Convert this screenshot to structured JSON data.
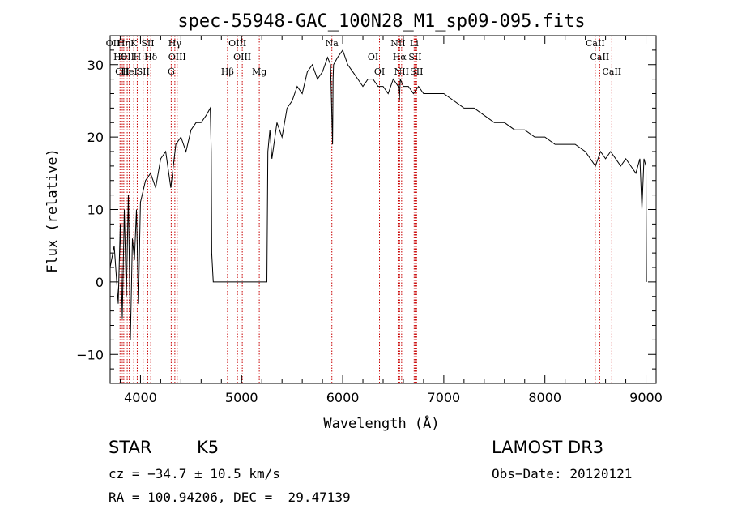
{
  "chart_data": {
    "type": "line",
    "title": "spec-55948-GAC_100N28_M1_sp09-095.fits",
    "xlabel": "Wavelength (Å)",
    "ylabel": "Flux (relative)",
    "xlim": [
      3700,
      9100
    ],
    "ylim": [
      -14,
      34
    ],
    "x_ticks": [
      4000,
      5000,
      6000,
      7000,
      8000,
      9000
    ],
    "y_ticks": [
      -10,
      0,
      10,
      20,
      30
    ],
    "grid": false,
    "series": [
      {
        "name": "spectrum",
        "x": [
          3700,
          3740,
          3780,
          3800,
          3820,
          3840,
          3860,
          3880,
          3900,
          3920,
          3940,
          3960,
          3980,
          4000,
          4050,
          4100,
          4150,
          4200,
          4250,
          4300,
          4350,
          4400,
          4450,
          4500,
          4550,
          4600,
          4650,
          4690,
          4700,
          4705,
          4720,
          4800,
          5000,
          5200,
          5250,
          5260,
          5280,
          5300,
          5350,
          5400,
          5450,
          5500,
          5550,
          5600,
          5650,
          5700,
          5750,
          5800,
          5850,
          5880,
          5900,
          5905,
          5910,
          5950,
          6000,
          6050,
          6100,
          6150,
          6200,
          6250,
          6300,
          6350,
          6400,
          6450,
          6500,
          6550,
          6560,
          6570,
          6600,
          6650,
          6700,
          6750,
          6800,
          6900,
          7000,
          7100,
          7200,
          7300,
          7400,
          7500,
          7600,
          7700,
          7800,
          7900,
          8000,
          8100,
          8200,
          8300,
          8400,
          8450,
          8500,
          8550,
          8600,
          8650,
          8700,
          8750,
          8800,
          8850,
          8900,
          8940,
          8960,
          8980,
          9000,
          9005
        ],
        "values": [
          2,
          5,
          -3,
          8,
          -5,
          10,
          -2,
          12,
          -8,
          6,
          3,
          10,
          -3,
          11,
          14,
          15,
          13,
          17,
          18,
          13,
          19,
          20,
          18,
          21,
          22,
          22,
          23,
          24,
          18,
          4,
          0,
          0,
          0,
          0,
          0,
          18,
          21,
          17,
          22,
          20,
          24,
          25,
          27,
          26,
          29,
          30,
          28,
          29,
          31,
          30,
          19,
          28,
          30,
          31,
          32,
          30,
          29,
          28,
          27,
          28,
          28,
          27,
          27,
          26,
          28,
          27,
          25,
          28,
          27,
          27,
          26,
          27,
          26,
          26,
          26,
          25,
          24,
          24,
          23,
          22,
          22,
          21,
          21,
          20,
          20,
          19,
          19,
          19,
          18,
          17,
          16,
          18,
          17,
          18,
          17,
          16,
          17,
          16,
          15,
          17,
          10,
          17,
          16,
          0
        ]
      }
    ],
    "line_markers": [
      {
        "wl": 3728,
        "label": "OII"
      },
      {
        "wl": 3798,
        "label": "Hθ"
      },
      {
        "wl": 3820,
        "label": "OII"
      },
      {
        "wl": 3835,
        "label": "Hη"
      },
      {
        "wl": 3869,
        "label": "OII"
      },
      {
        "wl": 3889,
        "label": "HeI"
      },
      {
        "wl": 3934,
        "label": "K"
      },
      {
        "wl": 3968,
        "label": "H"
      },
      {
        "wl": 4026,
        "label": "SII"
      },
      {
        "wl": 4072,
        "label": "SII"
      },
      {
        "wl": 4102,
        "label": "Hδ"
      },
      {
        "wl": 4304,
        "label": "G"
      },
      {
        "wl": 4340,
        "label": "Hγ"
      },
      {
        "wl": 4363,
        "label": "OIII"
      },
      {
        "wl": 4861,
        "label": "Hβ"
      },
      {
        "wl": 4959,
        "label": "OIII"
      },
      {
        "wl": 5007,
        "label": "OIII"
      },
      {
        "wl": 5175,
        "label": "Mg"
      },
      {
        "wl": 5893,
        "label": "Na"
      },
      {
        "wl": 6300,
        "label": "OI"
      },
      {
        "wl": 6364,
        "label": "OI"
      },
      {
        "wl": 6548,
        "label": "NII"
      },
      {
        "wl": 6563,
        "label": "Hα"
      },
      {
        "wl": 6583,
        "label": "NII"
      },
      {
        "wl": 6707,
        "label": "Li"
      },
      {
        "wl": 6716,
        "label": "SII"
      },
      {
        "wl": 6731,
        "label": "SII"
      },
      {
        "wl": 8498,
        "label": "CaII"
      },
      {
        "wl": 8542,
        "label": "CaII"
      },
      {
        "wl": 8662,
        "label": "CaII"
      }
    ],
    "marker_color": "#c80000",
    "line_color": "#000000"
  },
  "info": {
    "class": "STAR",
    "subclass": "K5",
    "survey": "LAMOST DR3",
    "cz": "cz = −34.7 ± 10.5 km/s",
    "obs_date": "Obs−Date: 20120121",
    "coords": "RA = 100.94206, DEC =  29.47139"
  }
}
